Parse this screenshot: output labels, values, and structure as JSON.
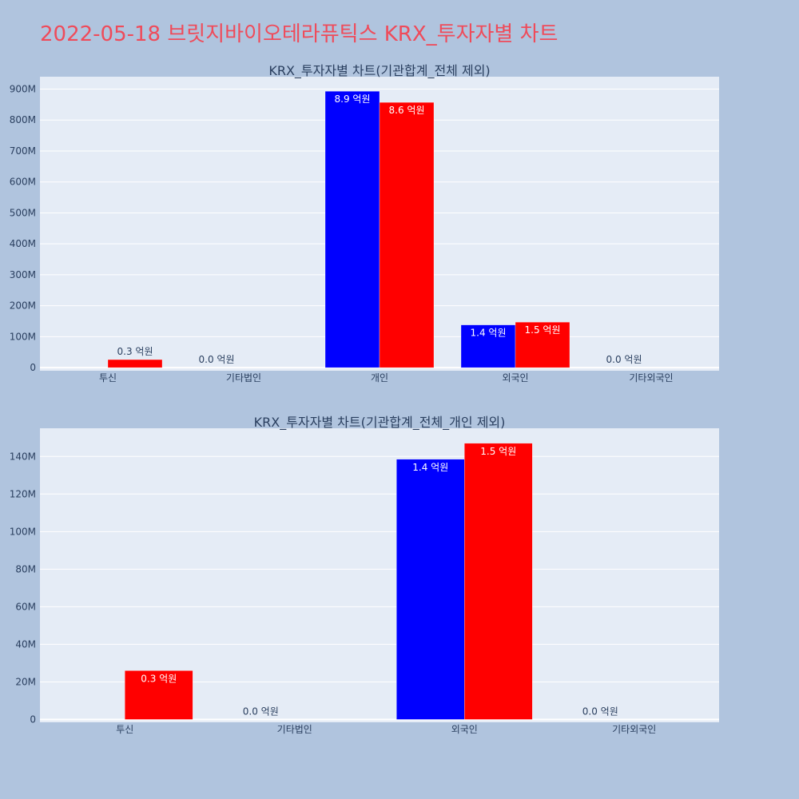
{
  "title": "2022-05-18 브릿지바이오테라퓨틱스 KRX_투자자별 차트",
  "colors": {
    "buy": "#0000ff",
    "sell": "#ff0000",
    "title": "#ef4b5a",
    "background": "#b0c4de",
    "plot": "#e5ecf6"
  },
  "chart_data": [
    {
      "type": "bar",
      "title": "KRX_투자자별 차트(기관합계_전체 제외)",
      "categories": [
        "투신",
        "기타법인",
        "개인",
        "외국인",
        "기타외국인"
      ],
      "series": [
        {
          "values": [
            0,
            0.3,
            893000000,
            138000000,
            0
          ],
          "labels": [
            "",
            "0.0 억원",
            "8.9 억원",
            "1.4 억원",
            "0.0 억원"
          ]
        },
        {
          "values": [
            26000000,
            0,
            857000000,
            147000000,
            0
          ],
          "labels": [
            "0.3 억원",
            "",
            "8.6 억원",
            "1.5 억원",
            ""
          ]
        }
      ],
      "yticks": [
        0,
        100000000,
        200000000,
        300000000,
        400000000,
        500000000,
        600000000,
        700000000,
        800000000,
        900000000
      ],
      "ytick_labels": [
        "0",
        "100M",
        "200M",
        "300M",
        "400M",
        "500M",
        "600M",
        "700M",
        "800M",
        "900M"
      ],
      "ylim": [
        -10000000,
        940000000
      ],
      "grid": true
    },
    {
      "type": "bar",
      "title": "KRX_투자자별 차트(기관합계_전체_개인 제외)",
      "categories": [
        "투신",
        "기타법인",
        "외국인",
        "기타외국인"
      ],
      "series": [
        {
          "values": [
            0,
            0.3,
            138500000,
            0.3
          ],
          "labels": [
            "",
            "0.0 억원",
            "1.4 억원",
            "0.0 억원"
          ]
        },
        {
          "values": [
            26000000,
            0,
            147000000,
            0
          ],
          "labels": [
            "0.3 억원",
            "",
            "1.5 억원",
            ""
          ]
        }
      ],
      "yticks": [
        0,
        20000000,
        40000000,
        60000000,
        80000000,
        100000000,
        120000000,
        140000000
      ],
      "ytick_labels": [
        "0",
        "20M",
        "40M",
        "60M",
        "80M",
        "100M",
        "120M",
        "140M"
      ],
      "ylim": [
        -1500000,
        155000000
      ],
      "grid": true
    }
  ]
}
